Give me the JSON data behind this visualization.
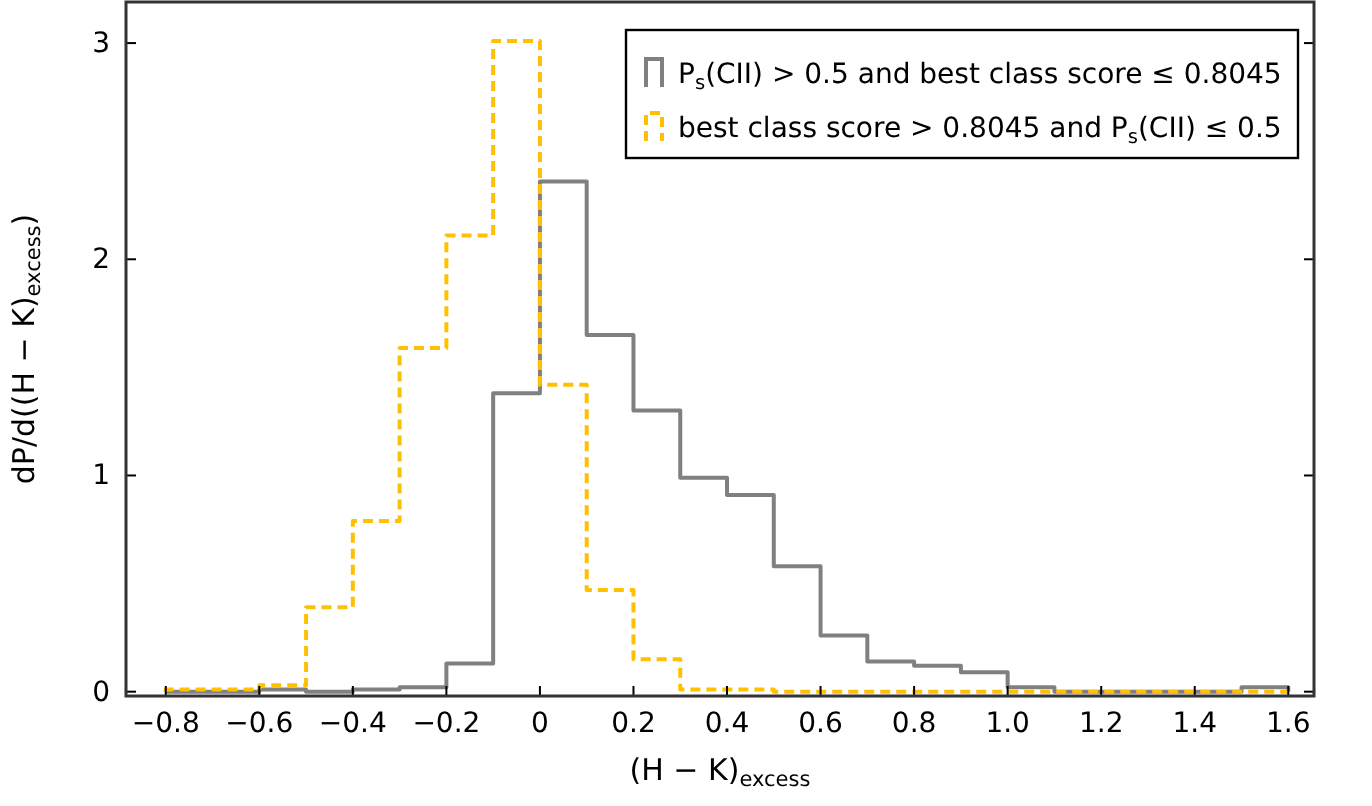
{
  "chart_data": {
    "type": "histogram",
    "xlabel": "(H − K)$_{excess}$",
    "ylabel": "dP/d((H − K)$_{excess}$)",
    "bins": [
      -0.8,
      -0.7,
      -0.6,
      -0.5,
      -0.4,
      -0.3,
      -0.2,
      -0.1,
      0,
      0.1,
      0.2,
      0.3,
      0.4,
      0.5,
      0.6,
      0.7,
      0.8,
      0.9,
      1.0,
      1.1,
      1.2,
      1.3,
      1.4,
      1.5,
      1.6
    ],
    "series": [
      {
        "name": "P$_{s}$(CII) > 0.5 and best class score ≤ 0.8045",
        "color": "#808080",
        "line_style": "solid",
        "values": [
          0,
          0,
          0.01,
          0,
          0.01,
          0.02,
          0.13,
          1.38,
          2.36,
          1.65,
          1.3,
          0.99,
          0.91,
          0.58,
          0.26,
          0.14,
          0.12,
          0.09,
          0.02,
          0,
          0,
          0,
          0,
          0.02
        ]
      },
      {
        "name": "best class score > 0.8045 and P$_{s}$(CII) ≤ 0.5",
        "color": "#ffc000",
        "line_style": "dashed",
        "values": [
          0.01,
          0.01,
          0.03,
          0.39,
          0.79,
          1.59,
          2.11,
          3.01,
          1.42,
          0.47,
          0.15,
          0.01,
          0.01,
          0,
          0,
          0,
          0,
          0,
          0,
          0,
          0,
          0,
          0,
          0
        ]
      }
    ],
    "xlim": [
      -0.885,
      1.655
    ],
    "ylim": [
      -0.02,
      3.19
    ],
    "xticks": [
      {
        "value": -0.8,
        "label": "−0.8"
      },
      {
        "value": -0.6,
        "label": "−0.6"
      },
      {
        "value": -0.4,
        "label": "−0.4"
      },
      {
        "value": -0.2,
        "label": "−0.2"
      },
      0,
      0.2,
      0.4,
      0.6,
      0.8,
      {
        "value": 1.0,
        "label": "1.0"
      },
      1.2,
      1.4,
      1.6
    ],
    "yticks": [
      0,
      1,
      2,
      3
    ],
    "grid": false,
    "legend": "top right"
  }
}
